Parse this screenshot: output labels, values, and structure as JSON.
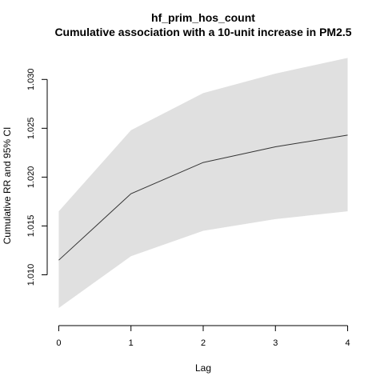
{
  "chart_data": {
    "type": "line",
    "title": "hf_prim_hos_count",
    "subtitle": "Cumulative association with a 10-unit increase in PM2.5",
    "xlabel": "Lag",
    "ylabel": "Cumulative RR and 95% CI",
    "x": [
      0,
      1,
      2,
      3,
      4
    ],
    "x_ticks": [
      "0",
      "1",
      "2",
      "3",
      "4"
    ],
    "y_ticks": [
      "1.010",
      "1.015",
      "1.020",
      "1.025",
      "1.030"
    ],
    "xlim": [
      -0.16,
      4.16
    ],
    "ylim": [
      1.0048,
      1.0333
    ],
    "series": [
      {
        "values": [
          1.0115,
          1.0183,
          1.0215,
          1.0231,
          1.0243
        ],
        "lower": [
          1.0066,
          1.0119,
          1.0145,
          1.0157,
          1.0165
        ],
        "upper": [
          1.0165,
          1.0248,
          1.0286,
          1.0306,
          1.0322
        ],
        "line_color": "#333333",
        "band_color": "#e0e0e0"
      }
    ],
    "grid": false,
    "legend": "none"
  }
}
